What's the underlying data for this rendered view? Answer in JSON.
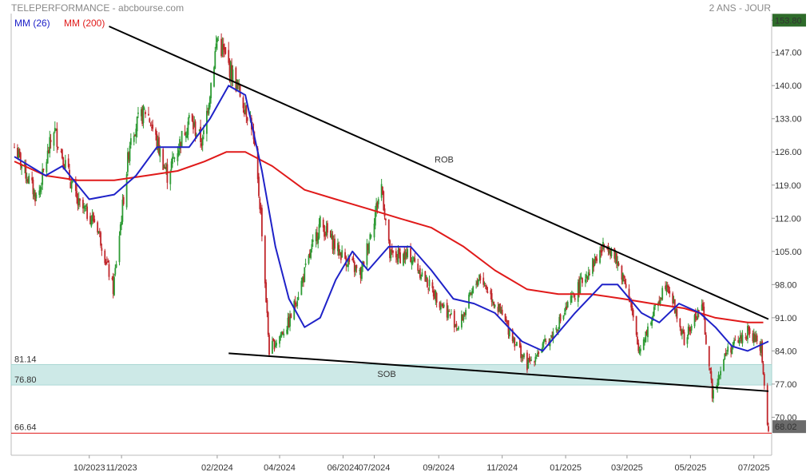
{
  "header": {
    "title": "TELEPERFORMANCE - abcbourse.com",
    "period": "2 ANS - JOUR"
  },
  "colors": {
    "candle_up": "#2e9b35",
    "candle_down": "#c0262b",
    "ma26": "#1f22c8",
    "ma200": "#e01a1a",
    "trendline": "#000000",
    "zone": "#cde9e7",
    "last_price_bg": "#2e6b2a",
    "current_price_bg": "#6b6b6b"
  },
  "chart_data": {
    "type": "candlestick",
    "title": "TELEPERFORMANCE",
    "period": "2 ANS - JOUR",
    "ylim": [
      63.5,
      155.2
    ],
    "y_ticks": [
      "70.00",
      "77.00",
      "84.00",
      "91.00",
      "98.00",
      "105.00",
      "112.00",
      "119.00",
      "126.00",
      "133.00",
      "140.00",
      "147.00",
      "153.80"
    ],
    "x_ticks": [
      "10/2023",
      "11/2023",
      "02/2024",
      "04/2024",
      "06/2024",
      "07/2024",
      "09/2024",
      "11/2024",
      "01/2025",
      "03/2025",
      "05/2025",
      "07/2025"
    ],
    "x_tick_dates": [
      "2023-10-01",
      "2023-11-01",
      "2024-02-01",
      "2024-04-01",
      "2024-06-01",
      "2024-07-01",
      "2024-09-01",
      "2024-11-01",
      "2025-01-01",
      "2025-03-01",
      "2025-05-01",
      "2025-07-01"
    ],
    "x_range": [
      "2023-07-21",
      "2025-07-15"
    ],
    "legend": [
      {
        "label": "MM (26)",
        "color": "#1f22c8"
      },
      {
        "label": "MM (200)",
        "color": "#e01a1a"
      }
    ],
    "price_anchors": [
      [
        "2023-07-21",
        127.0
      ],
      [
        "2023-08-12",
        116.0
      ],
      [
        "2023-08-28",
        131.0
      ],
      [
        "2023-09-20",
        115.0
      ],
      [
        "2023-10-08",
        111.0
      ],
      [
        "2023-10-24",
        97.0
      ],
      [
        "2023-11-10",
        130.0
      ],
      [
        "2023-11-25",
        135.0
      ],
      [
        "2023-12-15",
        121.0
      ],
      [
        "2024-01-05",
        133.0
      ],
      [
        "2024-01-18",
        128.0
      ],
      [
        "2024-02-01",
        150.0
      ],
      [
        "2024-02-20",
        140.0
      ],
      [
        "2024-03-05",
        132.0
      ],
      [
        "2024-03-14",
        113.0
      ],
      [
        "2024-03-22",
        84.0
      ],
      [
        "2024-04-10",
        90.0
      ],
      [
        "2024-05-10",
        111.0
      ],
      [
        "2024-05-28",
        105.0
      ],
      [
        "2024-06-18",
        100.0
      ],
      [
        "2024-07-08",
        119.0
      ],
      [
        "2024-07-16",
        104.0
      ],
      [
        "2024-08-05",
        104.0
      ],
      [
        "2024-08-25",
        97.0
      ],
      [
        "2024-09-20",
        89.0
      ],
      [
        "2024-10-10",
        100.0
      ],
      [
        "2024-10-28",
        93.0
      ],
      [
        "2024-11-25",
        81.0
      ],
      [
        "2024-12-18",
        87.0
      ],
      [
        "2025-01-20",
        100.0
      ],
      [
        "2025-02-10",
        107.0
      ],
      [
        "2025-03-01",
        98.0
      ],
      [
        "2025-03-12",
        84.0
      ],
      [
        "2025-03-25",
        91.0
      ],
      [
        "2025-04-08",
        99.0
      ],
      [
        "2025-04-25",
        86.0
      ],
      [
        "2025-05-12",
        94.0
      ],
      [
        "2025-05-22",
        75.0
      ],
      [
        "2025-06-05",
        84.0
      ],
      [
        "2025-06-25",
        88.0
      ],
      [
        "2025-07-08",
        85.0
      ],
      [
        "2025-07-14",
        68.0
      ]
    ],
    "ma26": [
      [
        "2023-07-21",
        125.0
      ],
      [
        "2023-08-20",
        121.0
      ],
      [
        "2023-09-05",
        123.0
      ],
      [
        "2023-10-01",
        116.0
      ],
      [
        "2023-10-25",
        117.0
      ],
      [
        "2023-11-15",
        121.0
      ],
      [
        "2023-12-05",
        127.0
      ],
      [
        "2024-01-05",
        127.0
      ],
      [
        "2024-01-25",
        133.0
      ],
      [
        "2024-02-12",
        140.0
      ],
      [
        "2024-02-28",
        138.0
      ],
      [
        "2024-03-15",
        122.0
      ],
      [
        "2024-03-28",
        106.0
      ],
      [
        "2024-04-10",
        95.0
      ],
      [
        "2024-04-25",
        89.0
      ],
      [
        "2024-05-10",
        91.0
      ],
      [
        "2024-05-25",
        99.0
      ],
      [
        "2024-06-10",
        105.0
      ],
      [
        "2024-06-25",
        101.0
      ],
      [
        "2024-07-15",
        106.0
      ],
      [
        "2024-08-05",
        106.0
      ],
      [
        "2024-08-25",
        101.0
      ],
      [
        "2024-09-15",
        95.0
      ],
      [
        "2024-10-05",
        94.0
      ],
      [
        "2024-10-25",
        92.0
      ],
      [
        "2024-11-20",
        86.0
      ],
      [
        "2024-12-10",
        84.0
      ],
      [
        "2025-01-10",
        92.0
      ],
      [
        "2025-02-05",
        98.0
      ],
      [
        "2025-02-20",
        98.0
      ],
      [
        "2025-03-15",
        92.0
      ],
      [
        "2025-04-01",
        90.0
      ],
      [
        "2025-04-20",
        94.0
      ],
      [
        "2025-05-10",
        92.0
      ],
      [
        "2025-05-25",
        89.0
      ],
      [
        "2025-06-10",
        85.0
      ],
      [
        "2025-06-25",
        84.0
      ],
      [
        "2025-07-15",
        86.0
      ]
    ],
    "ma200": [
      [
        "2023-07-21",
        124.0
      ],
      [
        "2023-08-20",
        121.0
      ],
      [
        "2023-09-20",
        120.0
      ],
      [
        "2023-10-25",
        120.0
      ],
      [
        "2023-11-25",
        121.0
      ],
      [
        "2023-12-25",
        122.0
      ],
      [
        "2024-01-20",
        124.0
      ],
      [
        "2024-02-10",
        126.0
      ],
      [
        "2024-02-28",
        126.0
      ],
      [
        "2024-03-25",
        123.0
      ],
      [
        "2024-04-25",
        118.0
      ],
      [
        "2024-05-25",
        116.0
      ],
      [
        "2024-06-25",
        114.0
      ],
      [
        "2024-07-25",
        112.0
      ],
      [
        "2024-08-25",
        110.0
      ],
      [
        "2024-09-25",
        106.0
      ],
      [
        "2024-10-25",
        101.0
      ],
      [
        "2024-11-25",
        97.0
      ],
      [
        "2024-12-25",
        96.0
      ],
      [
        "2025-01-25",
        96.0
      ],
      [
        "2025-02-25",
        95.0
      ],
      [
        "2025-03-25",
        94.0
      ],
      [
        "2025-04-25",
        93.0
      ],
      [
        "2025-05-25",
        91.0
      ],
      [
        "2025-06-25",
        90.0
      ],
      [
        "2025-07-10",
        90.0
      ]
    ],
    "trendlines": [
      {
        "label": "ROB",
        "from": [
          "2023-10-20",
          152.5
        ],
        "to": [
          "2025-07-15",
          90.7
        ],
        "label_at": [
          "2024-08-28",
          123.8
        ]
      },
      {
        "label": "SOB",
        "from": [
          "2024-02-12",
          83.5
        ],
        "to": [
          "2025-07-15",
          75.5
        ],
        "label_at": [
          "2024-07-04",
          78.5
        ]
      }
    ],
    "support_zone": {
      "low": 76.8,
      "high": 81.14,
      "low_label": "76.80",
      "high_label": "81.14"
    },
    "support_level": {
      "value": 66.64,
      "label": "66.64"
    },
    "price_tags": [
      {
        "value": 153.8,
        "label": "153.80",
        "kind": "high"
      },
      {
        "value": 68.02,
        "label": "68.02",
        "kind": "last"
      }
    ]
  }
}
